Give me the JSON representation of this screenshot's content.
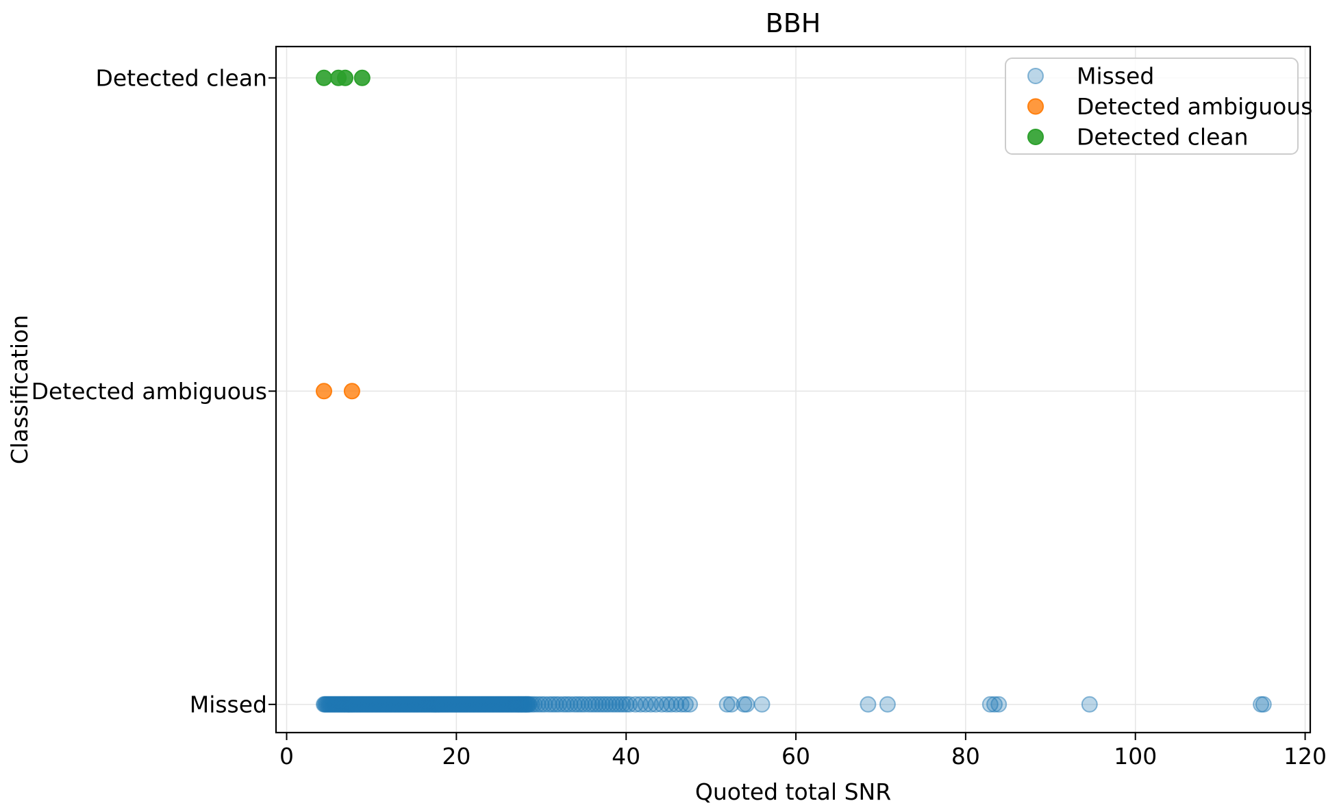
{
  "figure": {
    "title": "BBH",
    "xlabel": "Quoted total SNR",
    "ylabel": "Classification"
  },
  "chart_data": {
    "type": "scatter",
    "title": "BBH",
    "xlabel": "Quoted total SNR",
    "ylabel": "Classification",
    "categories": [
      "Missed",
      "Detected ambiguous",
      "Detected clean"
    ],
    "x_ticks": [
      0,
      20,
      40,
      60,
      80,
      100,
      120
    ],
    "xlim": [
      -1.25,
      120.6
    ],
    "ylim": [
      -0.09,
      2.1
    ],
    "grid": true,
    "legend_position": "upper right",
    "series": [
      {
        "name": "Missed",
        "category": "Missed",
        "color": "#1f77b4",
        "alpha": 0.3,
        "dense_band": {
          "start": 4.4,
          "end": 28.6,
          "count": 230
        },
        "x": [
          28.9,
          29.2,
          29.6,
          30.0,
          30.4,
          30.9,
          31.3,
          31.7,
          32.1,
          32.6,
          33.0,
          33.4,
          33.9,
          34.3,
          34.7,
          35.1,
          35.6,
          36.0,
          36.4,
          36.8,
          37.2,
          37.6,
          38.0,
          38.4,
          38.8,
          39.2,
          39.6,
          40.0,
          40.4,
          41.1,
          41.7,
          42.3,
          42.9,
          43.5,
          44.2,
          44.8,
          45.3,
          45.9,
          46.5,
          47.0,
          47.5,
          51.9,
          52.4,
          53.9,
          54.2,
          56.0,
          68.5,
          70.8,
          82.9,
          83.4,
          83.9,
          94.6,
          114.8,
          115.1
        ]
      },
      {
        "name": "Detected ambiguous",
        "category": "Detected ambiguous",
        "color": "#ff7f0e",
        "alpha": 0.8,
        "x": [
          4.4,
          7.7
        ]
      },
      {
        "name": "Detected clean",
        "category": "Detected clean",
        "color": "#2ca02c",
        "alpha": 0.9,
        "x": [
          4.4,
          6.1,
          6.9,
          8.9
        ]
      }
    ]
  }
}
